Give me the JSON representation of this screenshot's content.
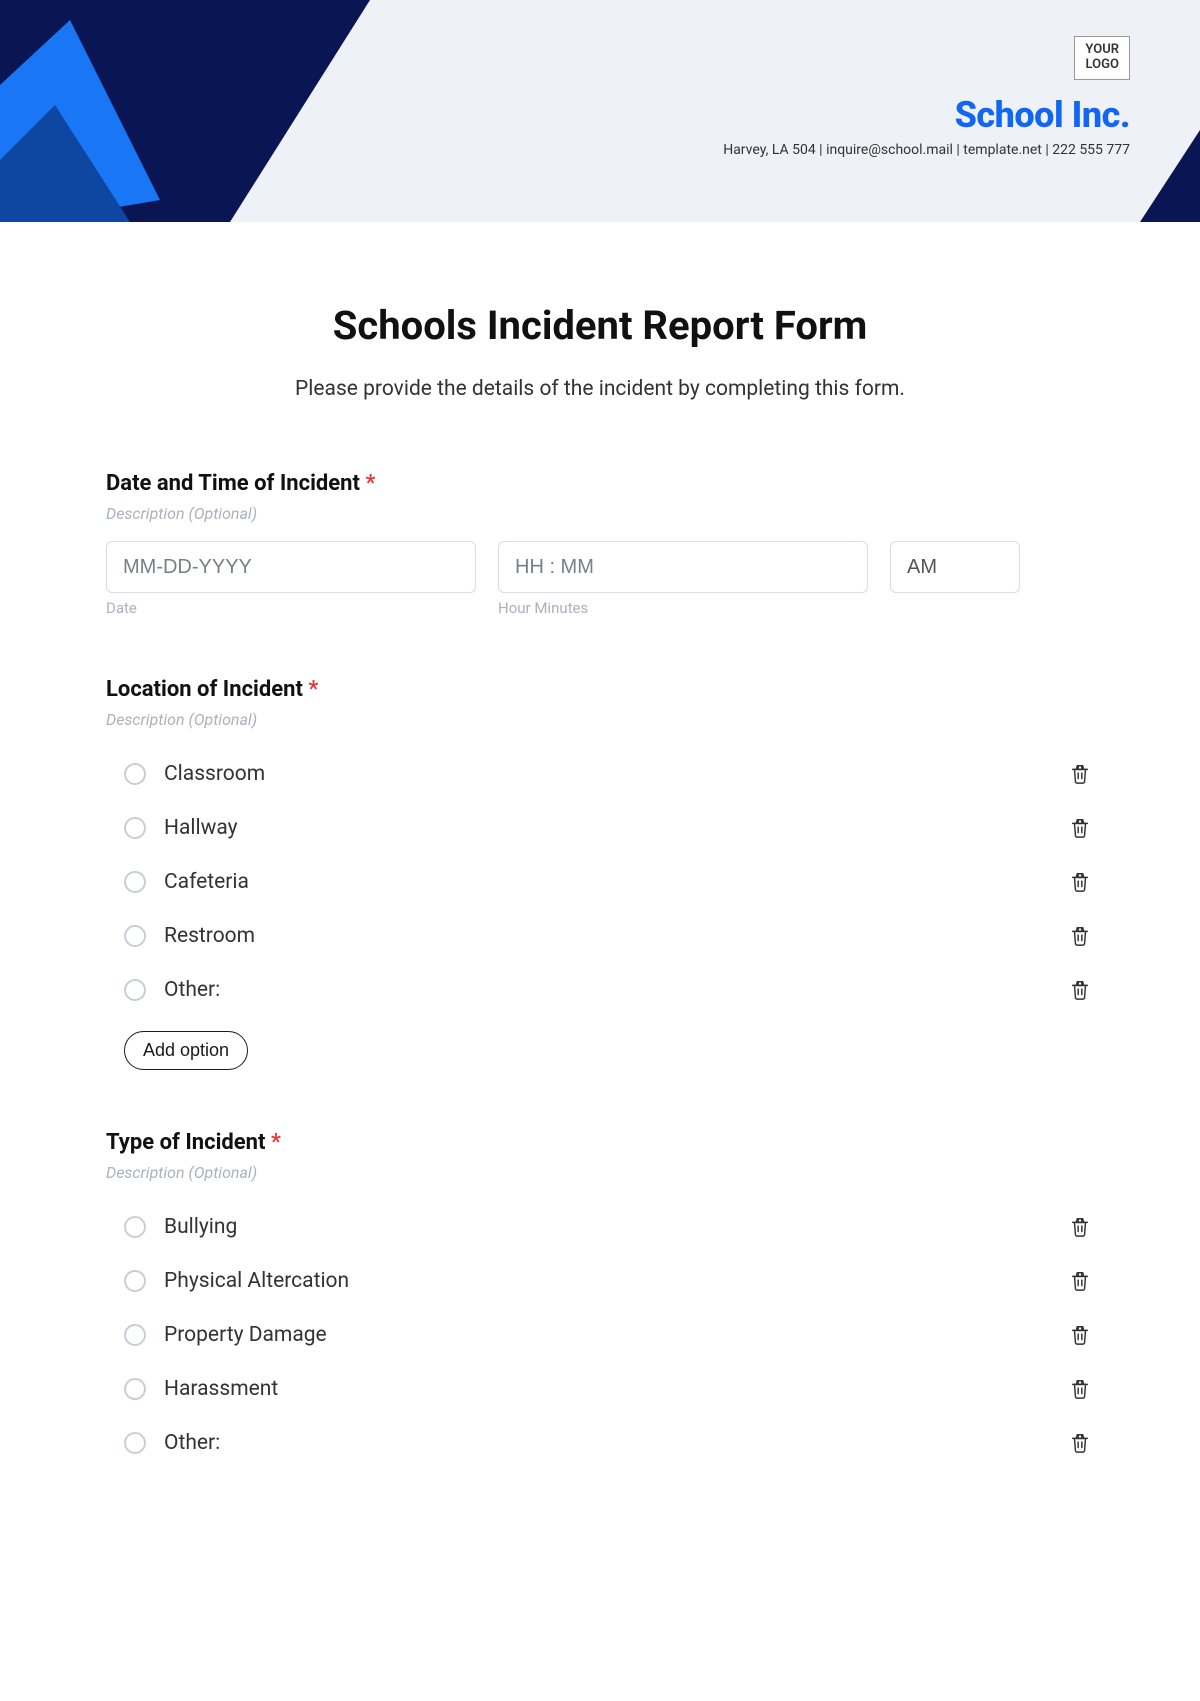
{
  "colors": {
    "page_bg": "#ffffff",
    "header_bg": "#eef1f5",
    "navy": "#0a1553",
    "bright_blue": "#1166f2",
    "shape_blue_1": "#1976f5",
    "shape_blue_2": "#0d47a1",
    "text": "#1a1a1a",
    "muted": "#a9b2be",
    "border": "#d6dde5",
    "required": "#e53935"
  },
  "header": {
    "logo_line1": "YOUR",
    "logo_line2": "LOGO",
    "org_name": "School Inc.",
    "contact": "Harvey, LA 504 | inquire@school.mail | template.net | 222 555 777"
  },
  "form": {
    "title": "Schools Incident Report Form",
    "subtitle": "Please provide the details of the incident by completing this form.",
    "desc_placeholder": "Description (Optional)",
    "add_option_label": "Add option",
    "sections": {
      "datetime": {
        "label": "Date and Time of Incident",
        "required": true,
        "date_placeholder": "MM-DD-YYYY",
        "date_sublabel": "Date",
        "time_placeholder": "HH : MM",
        "time_sublabel": "Hour Minutes",
        "ampm_value": "AM"
      },
      "location": {
        "label": "Location of Incident",
        "required": true,
        "options": [
          "Classroom",
          "Hallway",
          "Cafeteria",
          "Restroom",
          "Other:"
        ]
      },
      "type": {
        "label": "Type of Incident",
        "required": true,
        "options": [
          "Bullying",
          "Physical Altercation",
          "Property Damage",
          "Harassment",
          "Other:"
        ]
      }
    }
  }
}
